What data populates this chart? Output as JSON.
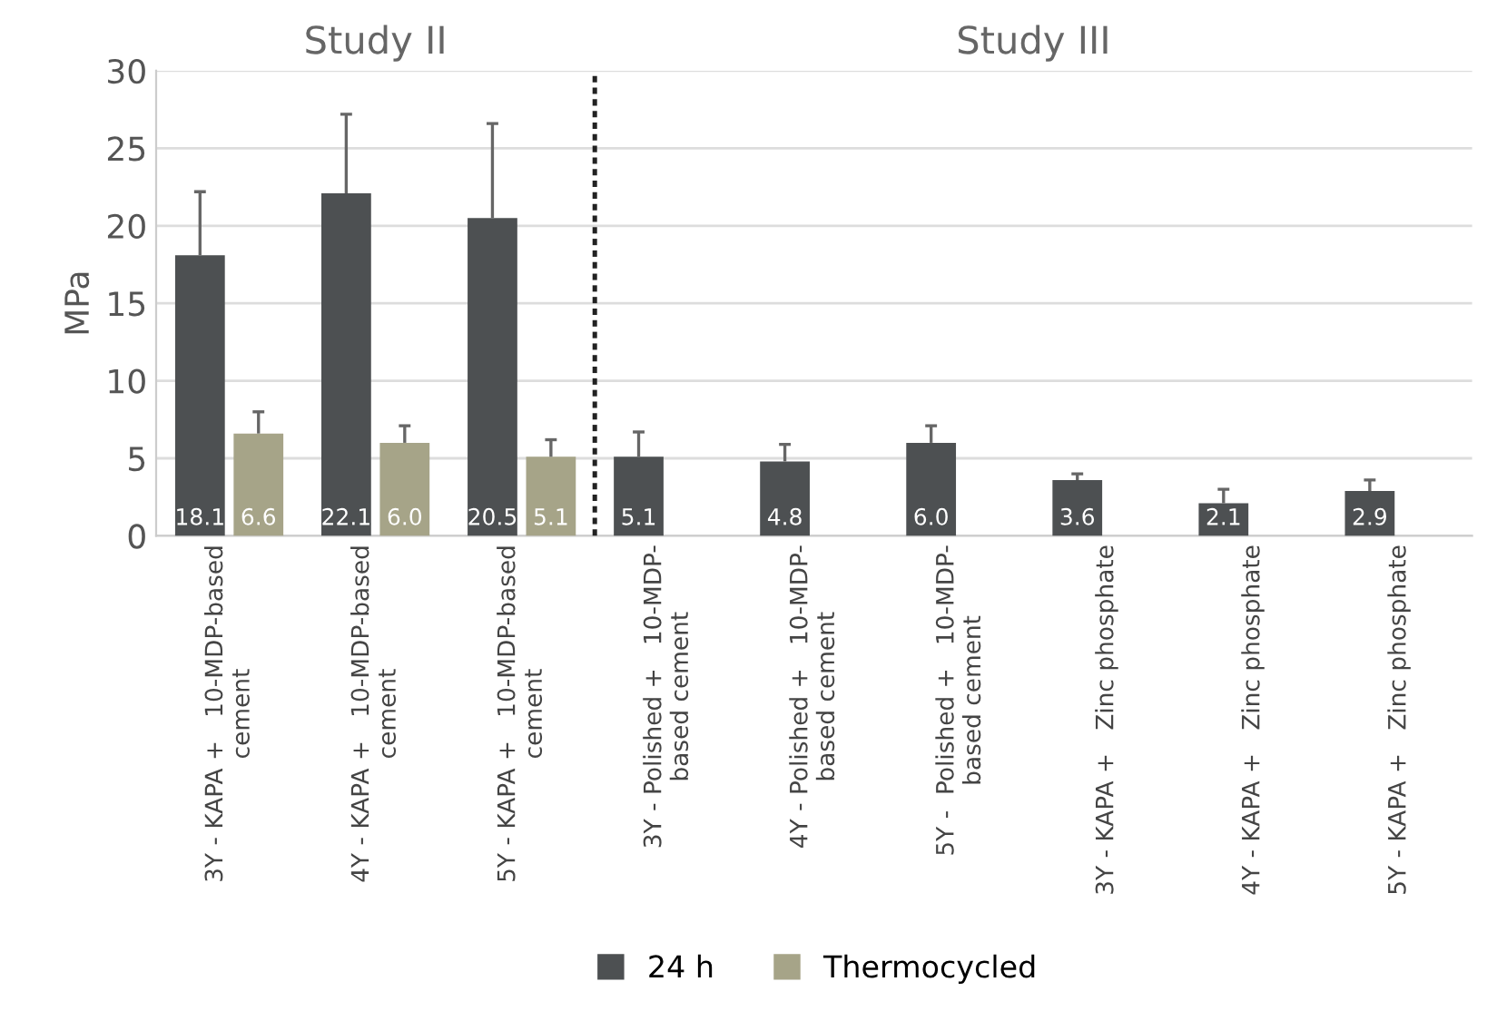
{
  "chart_data": {
    "type": "bar",
    "ylabel": "MPa",
    "annotations": [
      "Study II",
      "Study III"
    ],
    "categories": [
      "3Y - KAPA +   10-MDP-based\ncement",
      "4Y - KAPA +   10-MDP-based\ncement",
      "5Y - KAPA +   10-MDP-based\ncement",
      "3Y - Polished +   10-MDP-\nbased cement",
      "4Y - Polished +   10-MDP-\nbased cement",
      "5Y -  Polished +   10-MDP-\nbased cement",
      "3Y - KAPA +   Zinc phosphate",
      "4Y - KAPA +   Zinc phosphate",
      "5Y - KAPA +   Zinc phosphate"
    ],
    "series": [
      {
        "name": "24 h",
        "color": "#4d5052",
        "values": [
          18.1,
          22.1,
          20.5,
          5.1,
          4.8,
          6.0,
          3.6,
          2.1,
          2.9
        ],
        "errors": [
          [
            18.1,
            22.2
          ],
          [
            22.1,
            27.2
          ],
          [
            20.5,
            26.6
          ],
          [
            5.1,
            6.7
          ],
          [
            4.8,
            5.9
          ],
          [
            6.0,
            7.1
          ],
          [
            3.6,
            4.0
          ],
          [
            2.1,
            3.0
          ],
          [
            2.9,
            3.6
          ]
        ],
        "value_labels": [
          "18.1",
          "22.1",
          "20.5",
          "5.1",
          "4.8",
          "6.0",
          "3.6",
          "2.1",
          "2.9"
        ]
      },
      {
        "name": "Thermocycled",
        "color": "#a6a488",
        "values": [
          6.6,
          6.0,
          5.1,
          null,
          null,
          null,
          null,
          null,
          null
        ],
        "errors": [
          [
            6.6,
            8.0
          ],
          [
            6.0,
            7.1
          ],
          [
            5.1,
            6.2
          ],
          null,
          null,
          null,
          null,
          null,
          null
        ],
        "value_labels": [
          "6.6",
          "6.0",
          "5.1",
          null,
          null,
          null,
          null,
          null,
          null
        ]
      }
    ],
    "ylim": [
      0,
      30
    ],
    "yticks": [
      0,
      5,
      10,
      15,
      20,
      25,
      30
    ],
    "grid": "y",
    "legend": "bottom"
  }
}
